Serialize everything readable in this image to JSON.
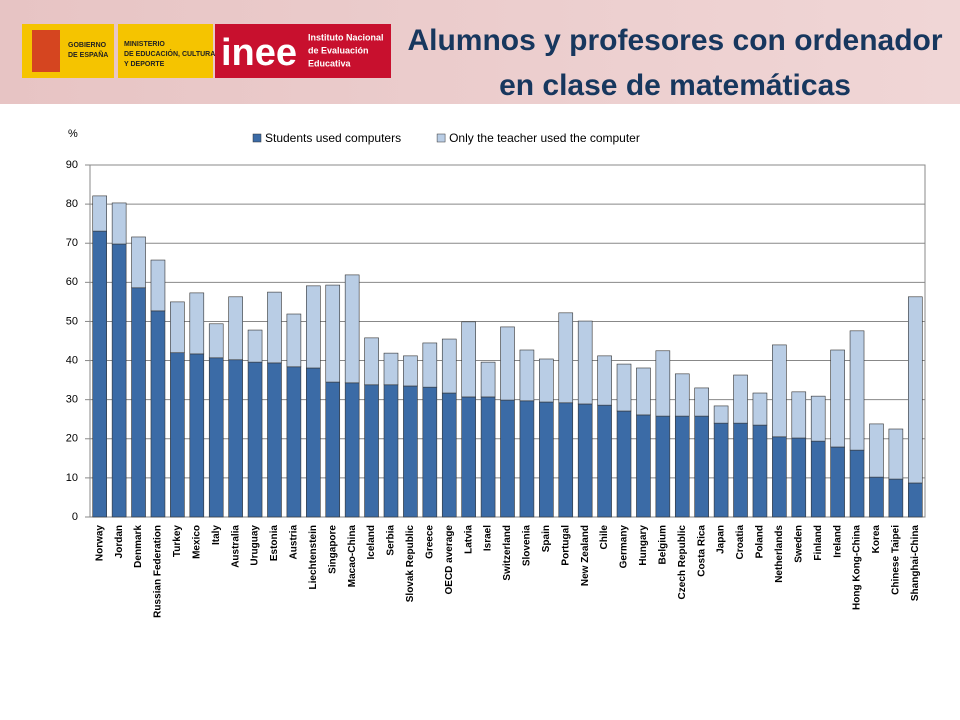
{
  "header": {
    "gov_lines": [
      "GOBIERNO",
      "DE ESPAÑA"
    ],
    "ministry_lines": [
      "MINISTERIO",
      "DE EDUCACIÓN, CULTURA",
      "Y DEPORTE"
    ],
    "inee": "inee",
    "institute_lines": [
      "Instituto Nacional",
      "de Evaluación",
      "Educativa"
    ]
  },
  "chart_data": {
    "type": "bar",
    "stacked": true,
    "title": [
      "Alumnos y profesores con ordenador",
      "en clase de matemáticas"
    ],
    "y_label": "%",
    "categories": [
      "Norway",
      "Jordan",
      "Denmark",
      "Russian Federation",
      "Turkey",
      "Mexico",
      "Italy",
      "Australia",
      "Uruguay",
      "Estonia",
      "Austria",
      "Liechtenstein",
      "Singapore",
      "Macao-China",
      "Iceland",
      "Serbia",
      "Slovak Republic",
      "Greece",
      "OECD average",
      "Latvia",
      "Israel",
      "Switzerland",
      "Slovenia",
      "Spain",
      "Portugal",
      "New Zealand",
      "Chile",
      "Germany",
      "Hungary",
      "Belgium",
      "Czech Republic",
      "Costa Rica",
      "Japan",
      "Croatia",
      "Poland",
      "Netherlands",
      "Sweden",
      "Finland",
      "Ireland",
      "Hong Kong-China",
      "Korea",
      "Chinese Taipei",
      "Shanghai-China"
    ],
    "series": [
      {
        "name": "Students used computers",
        "color": "#3b6ba6",
        "values": [
          73.1,
          69.8,
          58.6,
          52.7,
          42.0,
          41.7,
          40.7,
          40.2,
          39.6,
          39.4,
          38.4,
          38.1,
          34.5,
          34.3,
          33.8,
          33.8,
          33.5,
          33.2,
          31.7,
          30.7,
          30.7,
          29.9,
          29.7,
          29.4,
          29.2,
          28.9,
          28.6,
          27.1,
          26.1,
          25.8,
          25.8,
          25.8,
          24.0,
          24.0,
          23.5,
          20.5,
          20.2,
          19.4,
          17.9,
          17.1,
          10.2,
          9.7,
          8.7
        ]
      },
      {
        "name": "Only the teacher used the computer",
        "color": "#b9cde5",
        "values": [
          9.0,
          10.5,
          13.0,
          13.0,
          13.0,
          15.6,
          8.7,
          16.1,
          8.2,
          18.1,
          13.5,
          21.0,
          24.8,
          27.6,
          12.0,
          8.1,
          7.7,
          11.3,
          13.8,
          19.2,
          8.9,
          18.7,
          13.0,
          11.0,
          23.0,
          21.2,
          12.6,
          12.0,
          12.0,
          16.7,
          10.8,
          7.2,
          4.4,
          12.3,
          8.2,
          23.5,
          11.8,
          11.5,
          24.8,
          30.5,
          13.6,
          12.8,
          47.6
        ]
      }
    ],
    "ylim": [
      0,
      90
    ],
    "yticks": [
      0,
      10,
      20,
      30,
      40,
      50,
      60,
      70,
      80,
      90
    ],
    "grid": true,
    "legend": "top"
  }
}
